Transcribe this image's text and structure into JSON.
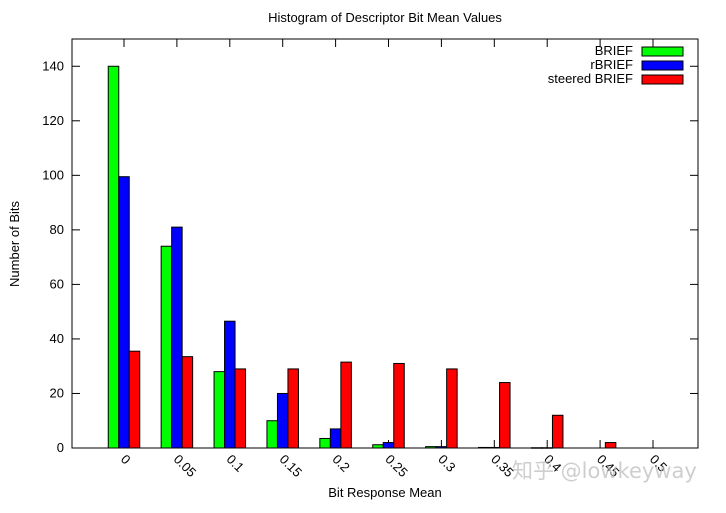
{
  "chart_data": {
    "type": "bar",
    "title": "Histogram of Descriptor Bit Mean Values",
    "xlabel": "Bit Response Mean",
    "ylabel": "Number of Bits",
    "categories": [
      "0",
      "0.05",
      "0.1",
      "0.15",
      "0.2",
      "0.25",
      "0.3",
      "0.35",
      "0.4",
      "0.45",
      "0.5"
    ],
    "ylim": [
      0,
      150
    ],
    "yticks": [
      0,
      20,
      40,
      60,
      80,
      100,
      120,
      140
    ],
    "series": [
      {
        "name": "BRIEF",
        "color": "#00ff00",
        "values": [
          140,
          74,
          28,
          10,
          3.5,
          1.2,
          0.5,
          0.2,
          0.1,
          0,
          0
        ]
      },
      {
        "name": "rBRIEF",
        "color": "#0000ff",
        "values": [
          99.5,
          81,
          46.5,
          20,
          7,
          2,
          0.5,
          0.2,
          0.1,
          0,
          0
        ]
      },
      {
        "name": "steered BRIEF",
        "color": "#ff0000",
        "values": [
          35.5,
          33.5,
          29,
          29,
          31.5,
          31,
          29,
          24,
          12,
          2,
          0
        ]
      }
    ],
    "legend_position": "top-right",
    "grid": false
  },
  "watermark": "知乎 @lowkeyway"
}
